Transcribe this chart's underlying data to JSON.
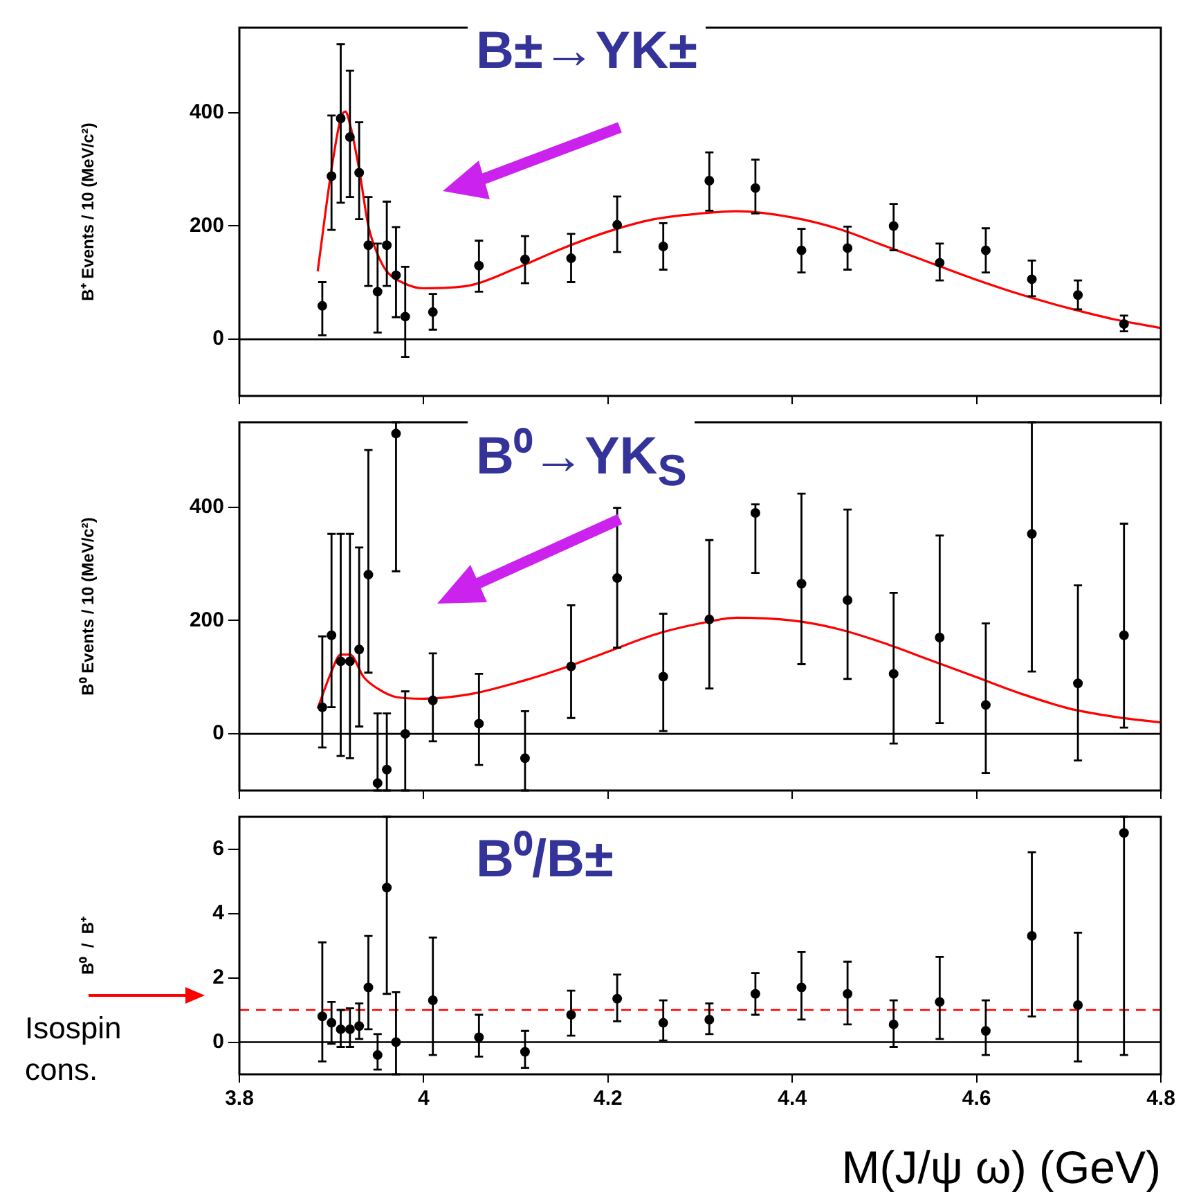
{
  "chart_data": [
    {
      "type": "scatter",
      "title": "B±→YK±",
      "ylabel": "B⁺ Events / 10 (MeV/c²)",
      "xlim": [
        3.8,
        4.8
      ],
      "xticks": [
        3.8,
        4,
        4.2,
        4.4,
        4.6,
        4.8
      ],
      "ylim": [
        -100,
        550
      ],
      "yticks": [
        0,
        200,
        400
      ],
      "tick_labels": "y",
      "grid": false,
      "legend": false,
      "ref_lines": [
        {
          "axis": "y",
          "value": 0,
          "color": "#000000",
          "line_style": "solid"
        }
      ],
      "series": [
        {
          "marker": "circle",
          "color": "#000000",
          "x": [
            3.89,
            3.9,
            3.91,
            3.92,
            3.93,
            3.94,
            3.95,
            3.96,
            3.97,
            3.98,
            4.01,
            4.06,
            4.11,
            4.16,
            4.21,
            4.26,
            4.31,
            4.36,
            4.41,
            4.46,
            4.51,
            4.56,
            4.61,
            4.66,
            4.71,
            4.76
          ],
          "values": [
            59,
            288,
            390,
            357,
            294,
            166,
            84,
            166,
            113,
            40,
            48,
            130,
            141,
            143,
            202,
            164,
            280,
            267,
            157,
            161,
            200,
            135,
            157,
            106,
            78,
            27
          ],
          "errors": [
            [
              7,
              101
            ],
            [
              193,
              395
            ],
            [
              241,
              521
            ],
            [
              251,
              474
            ],
            [
              212,
              383
            ],
            [
              94,
              251
            ],
            [
              12,
              169
            ],
            [
              94,
              243
            ],
            [
              39,
              198
            ],
            [
              -31,
              128
            ],
            [
              17,
              80
            ],
            [
              84,
              174
            ],
            [
              99,
              182
            ],
            [
              101,
              186
            ],
            [
              154,
              252
            ],
            [
              123,
              205
            ],
            [
              227,
              330
            ],
            [
              222,
              317
            ],
            [
              118,
              195
            ],
            [
              123,
              199
            ],
            [
              157,
              239
            ],
            [
              104,
              169
            ],
            [
              118,
              196
            ],
            [
              76,
              139
            ],
            [
              53,
              104
            ],
            [
              14,
              42
            ]
          ]
        },
        {
          "type": "line",
          "marker": "none",
          "color": "#ff0000",
          "line_style": "solid",
          "x": [
            3.885,
            3.9,
            3.91,
            3.915,
            3.92,
            3.93,
            3.94,
            3.95,
            3.96,
            3.98,
            4.0,
            4.05,
            4.1,
            4.15,
            4.2,
            4.25,
            4.3,
            4.34,
            4.4,
            4.45,
            4.5,
            4.55,
            4.6,
            4.65,
            4.7,
            4.75,
            4.8
          ],
          "values": [
            120,
            300,
            390,
            402,
            380,
            300,
            200,
            150,
            120,
            98,
            90,
            95,
            125,
            160,
            190,
            212,
            222,
            226,
            215,
            195,
            165,
            135,
            105,
            78,
            55,
            35,
            20
          ]
        }
      ]
    },
    {
      "type": "scatter",
      "title": "B⁰→YK$_{S}$",
      "ylabel": "B⁰ Events / 10 (MeV/c²)",
      "xlim": [
        3.8,
        4.8
      ],
      "xticks": [
        3.8,
        4,
        4.2,
        4.4,
        4.6,
        4.8
      ],
      "ylim": [
        -100,
        550
      ],
      "yticks": [
        0,
        200,
        400
      ],
      "tick_labels": "y",
      "grid": false,
      "legend": false,
      "ref_lines": [
        {
          "axis": "y",
          "value": 0,
          "color": "#000000",
          "line_style": "solid"
        }
      ],
      "series": [
        {
          "marker": "circle",
          "color": "#000000",
          "x": [
            3.89,
            3.9,
            3.91,
            3.92,
            3.93,
            3.94,
            3.95,
            3.96,
            3.97,
            3.98,
            4.01,
            4.06,
            4.11,
            4.16,
            4.21,
            4.26,
            4.31,
            4.36,
            4.41,
            4.46,
            4.51,
            4.56,
            4.61,
            4.66,
            4.71,
            4.76
          ],
          "values": [
            47,
            174,
            128,
            128,
            149,
            281,
            -87,
            -63,
            530,
            0,
            59,
            18,
            -43,
            119,
            275,
            101,
            202,
            390,
            265,
            236,
            106,
            170,
            51,
            353,
            89,
            174
          ],
          "errors": [
            [
              -24,
              172
            ],
            [
              47,
              353
            ],
            [
              -39,
              353
            ],
            [
              -43,
              353
            ],
            [
              13,
              329
            ],
            [
              108,
              501
            ],
            [
              -100,
              36
            ],
            [
              -100,
              36
            ],
            [
              287,
              550
            ],
            [
              -100,
              75
            ],
            [
              -13,
              142
            ],
            [
              -55,
              106
            ],
            [
              -100,
              40
            ],
            [
              28,
              227
            ],
            [
              152,
              399
            ],
            [
              5,
              212
            ],
            [
              80,
              342
            ],
            [
              284,
              405
            ],
            [
              123,
              424
            ],
            [
              97,
              396
            ],
            [
              -17,
              249
            ],
            [
              19,
              350
            ],
            [
              -69,
              195
            ],
            [
              110,
              550
            ],
            [
              -47,
              262
            ],
            [
              11,
              371
            ]
          ]
        },
        {
          "type": "line",
          "marker": "none",
          "color": "#ff0000",
          "line_style": "solid",
          "x": [
            3.885,
            3.9,
            3.91,
            3.92,
            3.935,
            3.95,
            3.97,
            4.0,
            4.05,
            4.1,
            4.15,
            4.2,
            4.25,
            4.3,
            4.34,
            4.4,
            4.45,
            4.5,
            4.55,
            4.6,
            4.65,
            4.7,
            4.75,
            4.8
          ],
          "values": [
            45,
            110,
            140,
            140,
            100,
            80,
            65,
            62,
            70,
            90,
            115,
            145,
            175,
            195,
            205,
            200,
            185,
            160,
            130,
            100,
            70,
            45,
            30,
            20
          ]
        }
      ]
    },
    {
      "type": "scatter",
      "title": "B⁰/B±",
      "ylabel": "B⁰  /  B⁺",
      "xlabel": "M(J/ψ ω) (GeV)",
      "xlim": [
        3.8,
        4.8
      ],
      "xticks": [
        3.8,
        4,
        4.2,
        4.4,
        4.6,
        4.8
      ],
      "ylim": [
        -1,
        7
      ],
      "yticks": [
        0,
        2,
        4,
        6
      ],
      "grid": false,
      "legend": false,
      "annotations": [
        "Isospin cons."
      ],
      "ref_lines": [
        {
          "axis": "y",
          "value": 0,
          "color": "#000000",
          "line_style": "solid"
        },
        {
          "axis": "y",
          "value": 1,
          "color": "#ff0000",
          "line_style": "dashed"
        }
      ],
      "series": [
        {
          "marker": "circle",
          "color": "#000000",
          "x": [
            3.89,
            3.9,
            3.91,
            3.92,
            3.93,
            3.94,
            3.95,
            3.96,
            3.97,
            4.01,
            4.06,
            4.11,
            4.16,
            4.21,
            4.26,
            4.31,
            4.36,
            4.41,
            4.46,
            4.51,
            4.56,
            4.61,
            4.66,
            4.71,
            4.76
          ],
          "values": [
            0.8,
            0.6,
            0.4,
            0.4,
            0.5,
            1.7,
            -0.4,
            4.8,
            0,
            1.3,
            0.15,
            -0.3,
            0.85,
            1.35,
            0.6,
            0.7,
            1.5,
            1.7,
            1.5,
            0.55,
            1.25,
            0.35,
            3.3,
            1.15,
            6.5
          ],
          "errors": [
            [
              -0.6,
              3.1
            ],
            [
              -0.05,
              1.25
            ],
            [
              -0.15,
              1.0
            ],
            [
              -0.15,
              1.05
            ],
            [
              0.1,
              1.2
            ],
            [
              0.4,
              3.3
            ],
            [
              -0.85,
              0.25
            ],
            [
              1.5,
              7
            ],
            [
              -1,
              1.55
            ],
            [
              -0.4,
              3.25
            ],
            [
              -0.45,
              0.85
            ],
            [
              -0.8,
              0.35
            ],
            [
              0.2,
              1.6
            ],
            [
              0.65,
              2.1
            ],
            [
              0.05,
              1.3
            ],
            [
              0.25,
              1.2
            ],
            [
              0.85,
              2.15
            ],
            [
              0.7,
              2.8
            ],
            [
              0.55,
              2.5
            ],
            [
              -0.15,
              1.3
            ],
            [
              0.1,
              2.65
            ],
            [
              -0.4,
              1.3
            ],
            [
              0.8,
              5.9
            ],
            [
              -0.6,
              3.4
            ],
            [
              -0.4,
              7
            ]
          ]
        }
      ]
    }
  ]
}
